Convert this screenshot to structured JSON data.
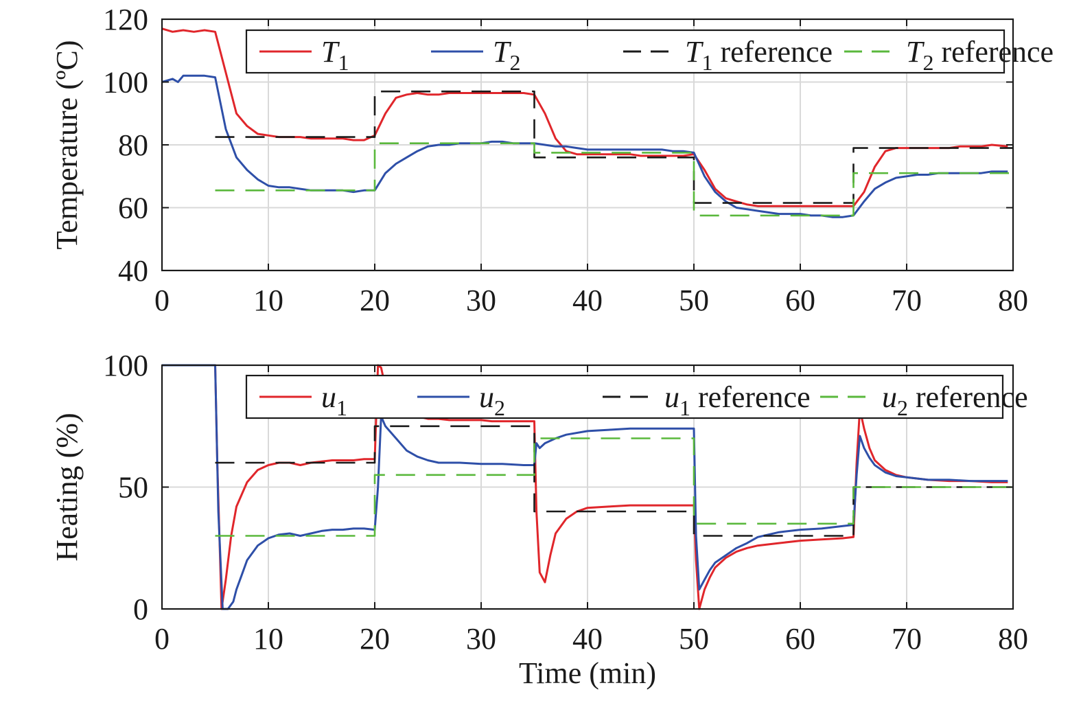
{
  "chart_data": [
    {
      "type": "line",
      "ylabel": "Temperature (ºC)",
      "xlabel": "",
      "xlim": [
        0,
        80
      ],
      "ylim": [
        40,
        120
      ],
      "xticks": [
        "0",
        "10",
        "20",
        "30",
        "40",
        "50",
        "60",
        "70",
        "80"
      ],
      "yticks": [
        "40",
        "60",
        "80",
        "100",
        "120"
      ],
      "grid": true,
      "legend_placement": "top",
      "series": [
        {
          "name": "T₁",
          "legend_var": "T",
          "legend_sub": "1",
          "legend_suffix": "",
          "color": "#e0262b",
          "dash": "solid",
          "x": [
            0,
            1,
            2,
            3,
            4,
            5,
            6,
            7,
            8,
            9,
            10,
            11,
            12,
            13,
            14,
            15,
            16,
            17,
            18,
            19,
            20,
            21,
            22,
            23,
            24,
            25,
            26,
            27,
            28,
            29,
            30,
            31,
            32,
            33,
            34,
            35,
            36,
            37,
            38,
            39,
            40,
            41,
            42,
            43,
            44,
            45,
            46,
            47,
            48,
            49,
            50,
            51,
            52,
            53,
            54,
            55,
            56,
            57,
            58,
            59,
            60,
            61,
            62,
            63,
            64,
            65,
            66,
            67,
            68,
            69,
            70,
            71,
            72,
            73,
            74,
            75,
            76,
            77,
            78,
            79.5
          ],
          "y": [
            117,
            116,
            116.5,
            116,
            116.5,
            116,
            103,
            90,
            86,
            83.5,
            83,
            82.5,
            82.5,
            82.5,
            82,
            82,
            82,
            82,
            81.5,
            81.5,
            83,
            90,
            95,
            96,
            96.5,
            96,
            96,
            96.5,
            96.5,
            96.5,
            96.5,
            96.5,
            96.5,
            96.5,
            96.5,
            96,
            90,
            82,
            78,
            77,
            77,
            77,
            77,
            77,
            77,
            76.5,
            76.5,
            76.5,
            76.5,
            76.5,
            77,
            72,
            66,
            63,
            62,
            61,
            60.5,
            60.5,
            60.5,
            60.5,
            60.5,
            60.5,
            60.5,
            60.5,
            60.5,
            60.5,
            65,
            73,
            78,
            79,
            79,
            79,
            79,
            79,
            79,
            79.5,
            79.5,
            79.5,
            80,
            79.5
          ]
        },
        {
          "name": "T₂",
          "legend_var": "T",
          "legend_sub": "2",
          "legend_suffix": "",
          "color": "#2e4fa8",
          "dash": "solid",
          "x": [
            0,
            1,
            1.5,
            2,
            3,
            4,
            5,
            6,
            7,
            8,
            9,
            10,
            11,
            12,
            13,
            14,
            15,
            16,
            17,
            18,
            19,
            20,
            21,
            22,
            23,
            24,
            25,
            26,
            27,
            28,
            29,
            30,
            31,
            32,
            33,
            34,
            35,
            36,
            37,
            38,
            39,
            40,
            41,
            42,
            43,
            44,
            45,
            46,
            47,
            48,
            49,
            50,
            51,
            52,
            53,
            54,
            55,
            56,
            57,
            58,
            59,
            60,
            61,
            62,
            63,
            64,
            65,
            66,
            67,
            68,
            69,
            70,
            71,
            72,
            73,
            74,
            75,
            76,
            77,
            78,
            79.5
          ],
          "y": [
            100,
            101,
            100,
            102,
            102,
            102,
            101.5,
            85,
            76,
            72,
            69,
            67,
            66.5,
            66.5,
            66,
            65.5,
            65.5,
            65.5,
            65.5,
            65,
            65.5,
            65.5,
            71,
            74,
            76,
            78,
            79.5,
            80,
            80,
            80.5,
            80.5,
            80.5,
            81,
            81,
            80.5,
            80.5,
            80.5,
            80,
            79.5,
            79.5,
            79,
            78.5,
            78.5,
            78.5,
            78.5,
            78.5,
            78.5,
            78.5,
            78.5,
            78,
            78,
            77.5,
            70,
            65,
            62,
            60,
            59.5,
            59,
            58.5,
            58,
            58,
            58,
            57.5,
            57.5,
            57,
            57,
            57.5,
            62,
            66,
            68,
            69.5,
            70,
            70.5,
            70.5,
            71,
            71,
            71,
            71,
            71,
            71.5,
            71.5
          ]
        },
        {
          "name": "T₁ reference",
          "legend_var": "T",
          "legend_sub": "1",
          "legend_suffix": " reference",
          "color": "#1a1a1a",
          "dash": "dashed",
          "x": [
            5,
            20,
            20,
            35,
            35,
            50,
            50,
            65,
            65,
            80
          ],
          "y": [
            82.5,
            82.5,
            97,
            97,
            76,
            76,
            61.5,
            61.5,
            79,
            79
          ]
        },
        {
          "name": "T₂ reference",
          "legend_var": "T",
          "legend_sub": "2",
          "legend_suffix": " reference",
          "color": "#5ab83c",
          "dash": "dashed",
          "x": [
            5,
            20,
            20,
            35,
            35,
            50,
            50,
            65,
            65,
            80
          ],
          "y": [
            65.5,
            65.5,
            80.5,
            80.5,
            77.5,
            77.5,
            57.5,
            57.5,
            71,
            71
          ]
        }
      ]
    },
    {
      "type": "line",
      "ylabel": "Heating (%)",
      "xlabel": "Time (min)",
      "xlim": [
        0,
        80
      ],
      "ylim": [
        0,
        100
      ],
      "xticks": [
        "0",
        "10",
        "20",
        "30",
        "40",
        "50",
        "60",
        "70",
        "80"
      ],
      "yticks": [
        "0",
        "50",
        "100"
      ],
      "grid": true,
      "legend_placement": "top",
      "series": [
        {
          "name": "u₁",
          "legend_var": "u",
          "legend_sub": "1",
          "legend_suffix": "",
          "color": "#e0262b",
          "dash": "solid",
          "x": [
            0,
            5,
            5.2,
            5.6,
            6,
            6.5,
            7,
            8,
            9,
            10,
            11,
            12,
            13,
            14,
            15,
            16,
            17,
            18,
            19,
            20,
            20.3,
            20.6,
            21,
            22,
            23,
            24,
            25,
            26,
            27,
            28,
            29,
            30,
            31,
            32,
            33,
            34,
            35,
            35.2,
            35.5,
            36,
            36.5,
            37,
            38,
            39,
            40,
            42,
            44,
            46,
            48,
            50,
            50.2,
            50.5,
            51,
            51.5,
            52,
            53,
            54,
            55,
            56,
            58,
            60,
            62,
            64,
            65,
            65.3,
            65.6,
            66,
            66.5,
            67,
            68,
            69,
            70,
            72,
            74,
            76,
            78,
            79.5
          ],
          "y": [
            100,
            100,
            60,
            0,
            12,
            30,
            42,
            52,
            57,
            59,
            60,
            60,
            59,
            60,
            60.5,
            61,
            61,
            61,
            61.5,
            61.5,
            100,
            99,
            91,
            82,
            80,
            79,
            78,
            78,
            77.5,
            77.5,
            77.5,
            77.5,
            77,
            77,
            77,
            77,
            77,
            40,
            15,
            11,
            22,
            31,
            37,
            40,
            41.5,
            42,
            42.5,
            42.5,
            42.5,
            42.5,
            20,
            0,
            8,
            13,
            17,
            21,
            23.5,
            25,
            26,
            27,
            28,
            28.5,
            29,
            29.5,
            60,
            82,
            74,
            66,
            61,
            57,
            55,
            54,
            53,
            52.5,
            52.5,
            52,
            52
          ]
        },
        {
          "name": "u₂",
          "legend_var": "u",
          "legend_sub": "2",
          "legend_suffix": "",
          "color": "#2e4fa8",
          "dash": "solid",
          "x": [
            0,
            5,
            5.3,
            5.7,
            6.2,
            6.7,
            7,
            7.5,
            8,
            9,
            10,
            11,
            12,
            13,
            14,
            15,
            16,
            17,
            18,
            19,
            20,
            20.3,
            20.6,
            21,
            22,
            23,
            24,
            25,
            26,
            28,
            30,
            32,
            34,
            35,
            35.2,
            35.5,
            36,
            37,
            38,
            40,
            42,
            44,
            46,
            48,
            50,
            50.2,
            50.5,
            51,
            51.5,
            52,
            53,
            54,
            55,
            56,
            58,
            60,
            62,
            64,
            65,
            65.3,
            65.6,
            66,
            66.5,
            67,
            68,
            69,
            70,
            72,
            74,
            76,
            78,
            79.5
          ],
          "y": [
            100,
            100,
            40,
            0,
            0,
            3,
            8,
            14,
            20,
            26,
            29,
            30.5,
            31,
            30,
            31,
            32,
            32.5,
            32.5,
            33,
            33,
            32.5,
            50,
            79,
            75,
            70,
            65,
            62.5,
            61,
            60,
            60,
            59.5,
            59.5,
            59,
            59,
            68,
            66,
            68,
            70,
            71.5,
            73,
            73.5,
            74,
            74,
            74,
            74,
            30,
            8,
            12,
            16,
            19,
            22,
            25,
            27,
            29.5,
            31.5,
            32.5,
            33,
            34,
            34.5,
            55,
            71,
            66,
            62,
            59,
            56,
            54.5,
            54,
            53,
            53,
            52.5,
            52.5,
            52.5
          ]
        },
        {
          "name": "u₁ reference",
          "legend_var": "u",
          "legend_sub": "1",
          "legend_suffix": " reference",
          "color": "#1a1a1a",
          "dash": "dashed",
          "x": [
            5,
            20,
            20,
            35,
            35,
            50,
            50,
            65,
            65,
            80
          ],
          "y": [
            60,
            60,
            75,
            75,
            40,
            40,
            30,
            30,
            50,
            50
          ]
        },
        {
          "name": "u₂ reference",
          "legend_var": "u",
          "legend_sub": "2",
          "legend_suffix": " reference",
          "color": "#5ab83c",
          "dash": "dashed",
          "x": [
            5,
            20,
            20,
            35,
            35,
            50,
            50,
            65,
            65,
            80
          ],
          "y": [
            30,
            30,
            55,
            55,
            70,
            70,
            35,
            35,
            50,
            50
          ]
        }
      ]
    }
  ]
}
